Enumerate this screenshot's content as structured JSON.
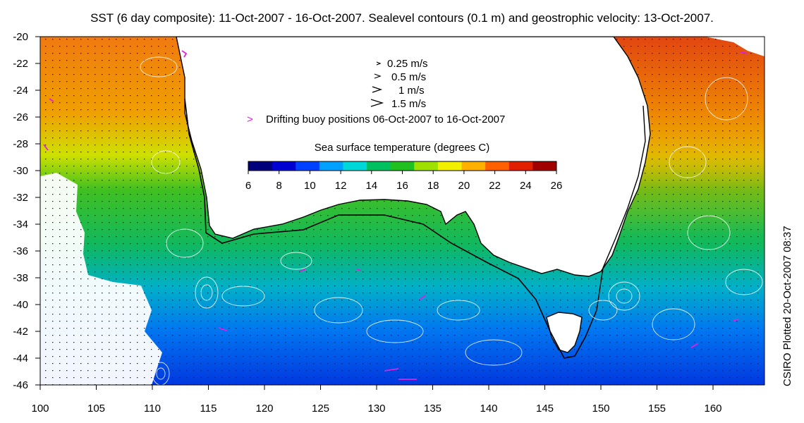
{
  "title": "SST (6 day composite): 11-Oct-2007 - 16-Oct-2007. Sealevel contours (0.1 m) and geostrophic velocity: 13-Oct-2007.",
  "side_label": "CSIRO Plotted 20-Oct-2007 08:37",
  "axes": {
    "x_ticks": [
      "100",
      "105",
      "110",
      "115",
      "120",
      "125",
      "130",
      "135",
      "140",
      "145",
      "150",
      "155",
      "160"
    ],
    "y_ticks": [
      "-20",
      "-22",
      "-24",
      "-26",
      "-28",
      "-30",
      "-32",
      "-34",
      "-36",
      "-38",
      "-40",
      "-42",
      "-44",
      "-46"
    ]
  },
  "legend": {
    "velocity": [
      {
        "label": "0.25 m/s",
        "icon": "arrow-small-icon"
      },
      {
        "label": "0.5 m/s",
        "icon": "arrow-medium-icon"
      },
      {
        "label": "1 m/s",
        "icon": "arrow-large-icon"
      },
      {
        "label": "1.5 m/s",
        "icon": "arrow-xlarge-icon"
      }
    ],
    "buoy": {
      "label": "Drifting buoy positions 06-Oct-2007 to 16-Oct-2007",
      "color": "#e020e0"
    }
  },
  "colorbar": {
    "title": "Sea surface temperature (degrees C)",
    "ticks": [
      "6",
      "8",
      "10",
      "12",
      "14",
      "16",
      "18",
      "20",
      "22",
      "24",
      "26"
    ],
    "colors": [
      "#00007a",
      "#0000d0",
      "#0040ff",
      "#00a0ff",
      "#00d8d8",
      "#00c060",
      "#20c020",
      "#a0e000",
      "#f0f000",
      "#ffb000",
      "#ff6000",
      "#e02000",
      "#a00000"
    ]
  },
  "colors": {
    "land": "#ffffff",
    "coast": "#000000",
    "contour": "#ffffff",
    "buoy": "#e020e0"
  }
}
